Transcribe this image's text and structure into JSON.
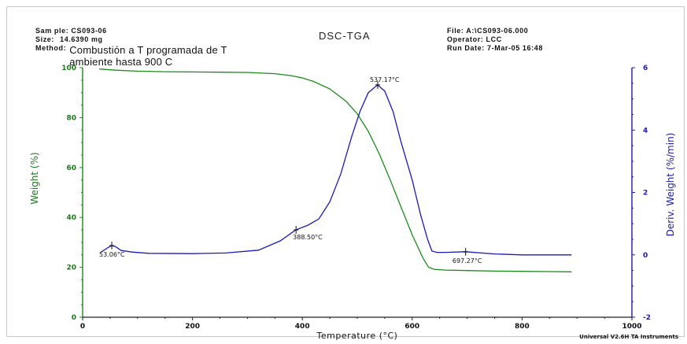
{
  "header": {
    "sample_key": "Sam ple:",
    "sample_val": "CS093-06",
    "size_key": "Size:",
    "size_val": "14.6390 mg",
    "method_key": "Method:",
    "method_line1": "Combustión a T programada de T",
    "method_line2": "ambiente hasta 900 C",
    "title": "DSC-TGA",
    "file_key": "File:",
    "file_val": "A:\\CS093-06.000",
    "operator_key": "Operator:",
    "operator_val": "LCC",
    "run_key": "Run Date:",
    "run_val": "7-Mar-05 16:48"
  },
  "footer": {
    "instrument": "Universal V2.6H TA Instruments"
  },
  "colors": {
    "weight": "#1a8a1a",
    "deriv": "#1a1ab8",
    "axis_left": "#1a8a1a",
    "axis_right": "#1a1ab8"
  },
  "chart_data": {
    "type": "line",
    "title": "DSC-TGA",
    "xlabel": "Temperature (°C)",
    "ylabel_left": "Weight (%)",
    "ylabel_right": "Deriv. Weight (%/min)",
    "xlim": [
      0,
      1000
    ],
    "ylim_left": [
      0,
      100
    ],
    "ylim_right": [
      -2,
      6
    ],
    "x_ticks": [
      "0",
      "200",
      "400",
      "600",
      "800",
      "1000"
    ],
    "y_ticks_left": [
      "0",
      "20",
      "40",
      "60",
      "80",
      "100"
    ],
    "y_ticks_right": [
      "-2",
      "0",
      "2",
      "4",
      "6"
    ],
    "grid": false,
    "series": [
      {
        "name": "Weight (%)",
        "axis": "left",
        "x": [
          30,
          60,
          100,
          150,
          200,
          250,
          300,
          350,
          380,
          400,
          420,
          450,
          480,
          500,
          520,
          540,
          560,
          580,
          600,
          620,
          630,
          640,
          660,
          700,
          750,
          800,
          850,
          890
        ],
        "y": [
          99.5,
          99.0,
          98.6,
          98.4,
          98.3,
          98.2,
          98.1,
          97.6,
          96.8,
          95.9,
          94.5,
          91.5,
          86.5,
          81.5,
          74.5,
          65.5,
          55.0,
          44.0,
          33.0,
          23.5,
          20.0,
          19.2,
          18.9,
          18.7,
          18.5,
          18.4,
          18.3,
          18.2
        ]
      },
      {
        "name": "Deriv. Weight (%/min)",
        "axis": "right",
        "x": [
          33,
          45,
          53,
          60,
          70,
          90,
          120,
          200,
          260,
          320,
          360,
          388,
          410,
          430,
          450,
          470,
          490,
          505,
          520,
          537,
          550,
          565,
          580,
          600,
          615,
          628,
          636,
          645,
          660,
          697,
          750,
          800,
          850,
          890
        ],
        "y": [
          0.08,
          0.22,
          0.3,
          0.26,
          0.14,
          0.09,
          0.05,
          0.04,
          0.06,
          0.15,
          0.45,
          0.8,
          0.95,
          1.15,
          1.7,
          2.6,
          3.8,
          4.6,
          5.2,
          5.45,
          5.25,
          4.6,
          3.6,
          2.4,
          1.3,
          0.5,
          0.12,
          0.08,
          0.08,
          0.1,
          0.03,
          0.0,
          0.0,
          0.0
        ]
      }
    ],
    "annotations": [
      {
        "x": 53.06,
        "y": 0.3,
        "label": "53.06°C"
      },
      {
        "x": 388.5,
        "y": 0.8,
        "label": "388.50°C"
      },
      {
        "x": 537.17,
        "y": 5.45,
        "label": "537.17°C"
      },
      {
        "x": 697.27,
        "y": 0.1,
        "label": "697.27°C"
      }
    ]
  }
}
